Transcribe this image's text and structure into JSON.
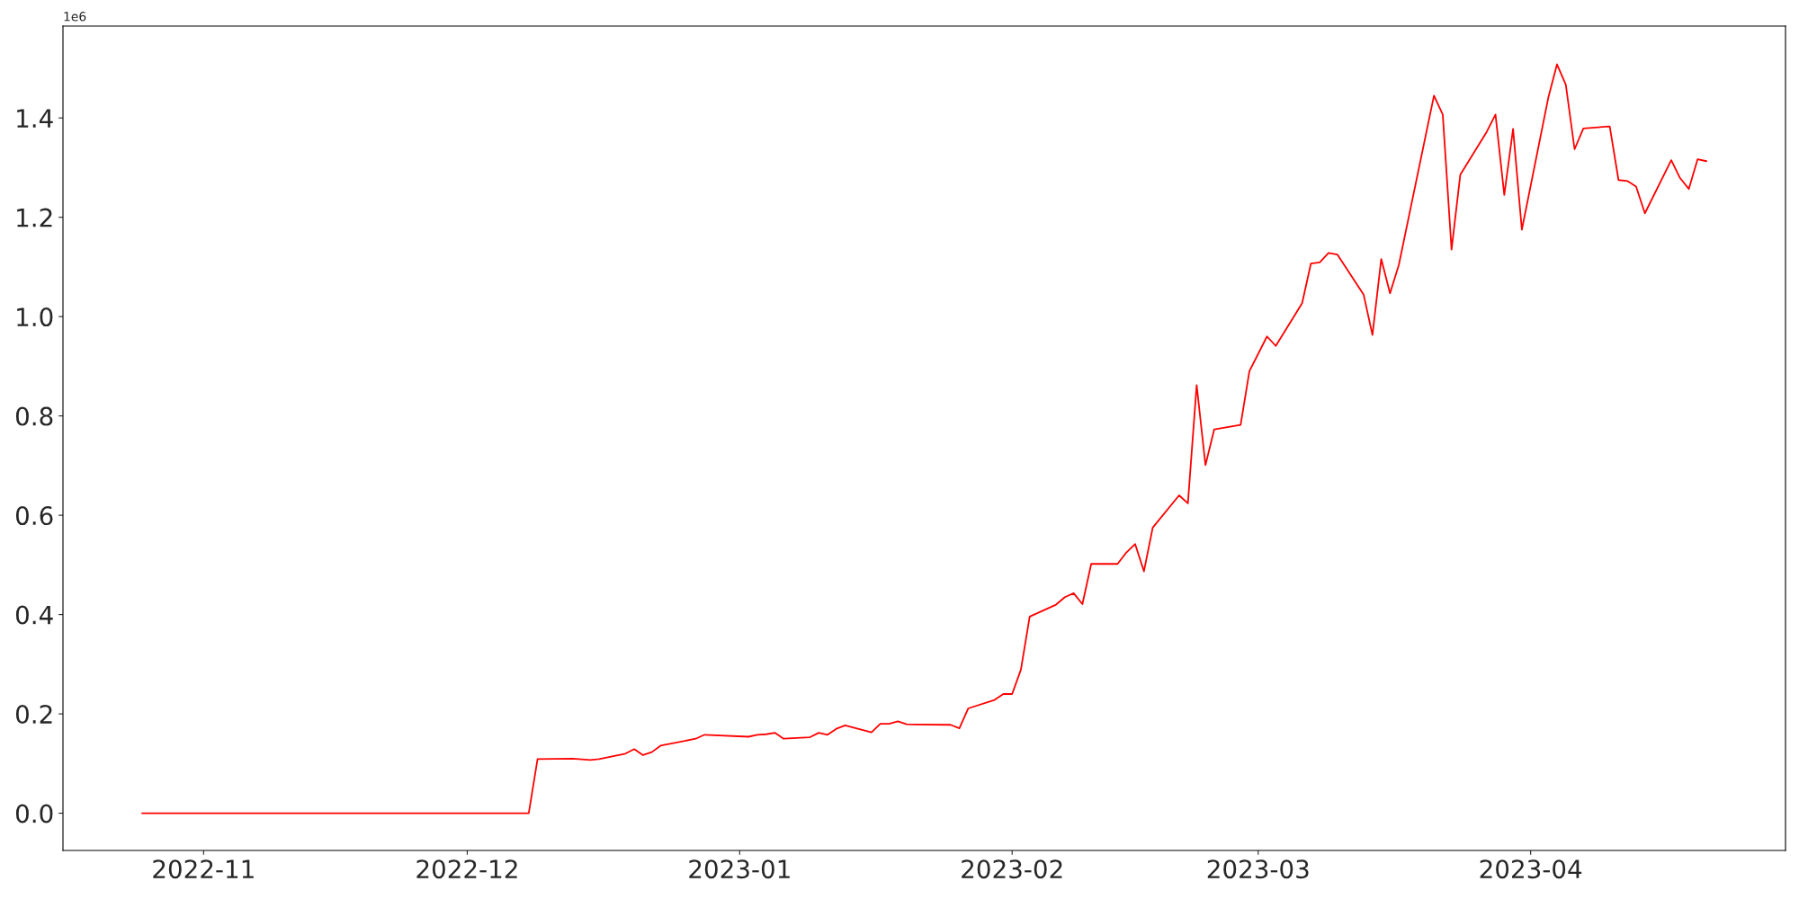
{
  "chart_data": {
    "type": "line",
    "x": [
      "2022-10-25",
      "2022-12-08",
      "2022-12-09",
      "2022-12-13",
      "2022-12-15",
      "2022-12-16",
      "2022-12-19",
      "2022-12-20",
      "2022-12-21",
      "2022-12-22",
      "2022-12-23",
      "2022-12-27",
      "2022-12-28",
      "2023-01-02",
      "2023-01-03",
      "2023-01-04",
      "2023-01-05",
      "2023-01-06",
      "2023-01-09",
      "2023-01-10",
      "2023-01-11",
      "2023-01-12",
      "2023-01-13",
      "2023-01-16",
      "2023-01-17",
      "2023-01-18",
      "2023-01-19",
      "2023-01-20",
      "2023-01-25",
      "2023-01-26",
      "2023-01-27",
      "2023-01-30",
      "2023-01-31",
      "2023-02-01",
      "2023-02-02",
      "2023-02-03",
      "2023-02-06",
      "2023-02-07",
      "2023-02-08",
      "2023-02-09",
      "2023-02-10",
      "2023-02-13",
      "2023-02-14",
      "2023-02-15",
      "2023-02-16",
      "2023-02-17",
      "2023-02-20",
      "2023-02-21",
      "2023-02-22",
      "2023-02-23",
      "2023-02-24",
      "2023-02-27",
      "2023-02-28",
      "2023-03-02",
      "2023-03-03",
      "2023-03-06",
      "2023-03-07",
      "2023-03-08",
      "2023-03-09",
      "2023-03-10",
      "2023-03-13",
      "2023-03-14",
      "2023-03-15",
      "2023-03-16",
      "2023-03-17",
      "2023-03-21",
      "2023-03-22",
      "2023-03-23",
      "2023-03-24",
      "2023-03-27",
      "2023-03-28",
      "2023-03-29",
      "2023-03-30",
      "2023-03-31",
      "2023-04-03",
      "2023-04-04",
      "2023-04-05",
      "2023-04-06",
      "2023-04-07",
      "2023-04-10",
      "2023-04-11",
      "2023-04-12",
      "2023-04-13",
      "2023-04-14",
      "2023-04-17",
      "2023-04-18",
      "2023-04-19",
      "2023-04-20",
      "2023-04-21"
    ],
    "series": [
      {
        "color": "#ff0000",
        "values": [
          0,
          0,
          0.109,
          0.11,
          0.107,
          0.109,
          0.12,
          0.129,
          0.117,
          0.123,
          0.136,
          0.15,
          0.158,
          0.154,
          0.158,
          0.159,
          0.162,
          0.15,
          0.153,
          0.162,
          0.158,
          0.17,
          0.177,
          0.163,
          0.18,
          0.18,
          0.185,
          0.179,
          0.178,
          0.171,
          0.211,
          0.228,
          0.24,
          0.24,
          0.289,
          0.396,
          0.42,
          0.435,
          0.443,
          0.421,
          0.502,
          0.502,
          0.525,
          0.542,
          0.487,
          0.575,
          0.64,
          0.624,
          0.862,
          0.701,
          0.773,
          0.782,
          0.89,
          0.96,
          0.941,
          1.027,
          1.107,
          1.109,
          1.128,
          1.125,
          1.044,
          0.963,
          1.116,
          1.047,
          1.104,
          1.445,
          1.407,
          1.135,
          1.286,
          1.372,
          1.407,
          1.245,
          1.378,
          1.175,
          1.44,
          1.508,
          1.467,
          1.337,
          1.379,
          1.383,
          1.275,
          1.273,
          1.262,
          1.208,
          1.315,
          1.279,
          1.257,
          1.317,
          1.313
        ]
      }
    ],
    "xlim": [
      "2022-10-16",
      "2023-04-30"
    ],
    "xticks": [
      {
        "value": "2022-11-01",
        "label": "2022-11"
      },
      {
        "value": "2022-12-01",
        "label": "2022-12"
      },
      {
        "value": "2023-01-01",
        "label": "2023-01"
      },
      {
        "value": "2023-02-01",
        "label": "2023-02"
      },
      {
        "value": "2023-03-01",
        "label": "2023-03"
      },
      {
        "value": "2023-04-01",
        "label": "2023-04"
      }
    ],
    "ylim": [
      -0.075,
      1.585
    ],
    "yticks": [
      {
        "value": 0,
        "label": "0.0"
      },
      0.2,
      0.4,
      0.6,
      0.8,
      {
        "value": 1,
        "label": "1.0"
      },
      1.2,
      1.4
    ],
    "annotations": [
      "1e6"
    ],
    "grid": false,
    "legend": false,
    "marker": "none",
    "line_style": "solid"
  }
}
